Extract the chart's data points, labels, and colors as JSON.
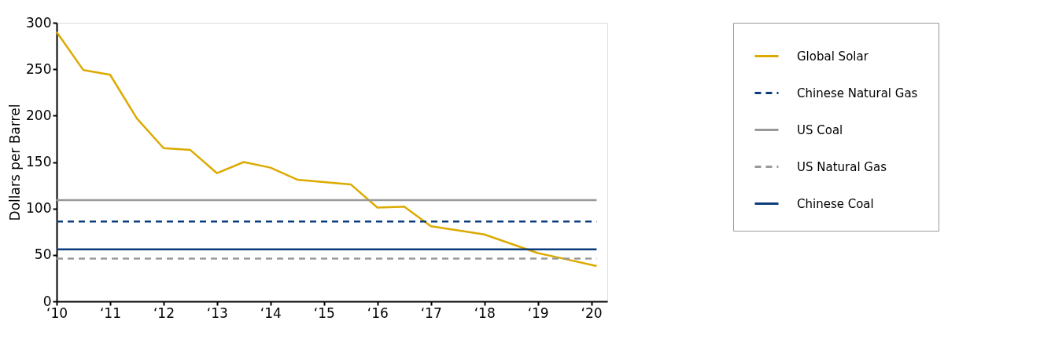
{
  "chart_data": {
    "type": "line",
    "ylabel": "Dollars per Barrel",
    "xlim": [
      10,
      20.3
    ],
    "ylim": [
      0,
      300
    ],
    "yticks": [
      0,
      50,
      100,
      150,
      200,
      250,
      300
    ],
    "xticks": [
      {
        "value": 10,
        "label": "‘10"
      },
      {
        "value": 11,
        "label": "‘11"
      },
      {
        "value": 12,
        "label": "‘12"
      },
      {
        "value": 13,
        "label": "‘13"
      },
      {
        "value": 14,
        "label": "‘14"
      },
      {
        "value": 15,
        "label": "‘15"
      },
      {
        "value": 16,
        "label": "‘16"
      },
      {
        "value": 17,
        "label": "‘17"
      },
      {
        "value": 18,
        "label": "‘18"
      },
      {
        "value": 19,
        "label": "‘19"
      },
      {
        "value": 20,
        "label": "‘20"
      }
    ],
    "grid": false,
    "legend": "right",
    "marker": "none",
    "series": [
      {
        "name": "Global Solar",
        "color": "#dcaa00",
        "line_style": "solid",
        "x": [
          10,
          10.5,
          11,
          11.5,
          12,
          12.5,
          13,
          13.5,
          14,
          14.5,
          15.5,
          16,
          16.5,
          17,
          18,
          19,
          19.4,
          20.1
        ],
        "values": [
          290,
          249,
          244,
          197,
          165,
          163,
          138,
          150,
          144,
          131,
          126,
          101,
          102,
          81,
          72,
          52,
          47,
          38
        ]
      },
      {
        "name": "Chinese Natural Gas",
        "color": "#0b3d7c",
        "line_style": "dashed",
        "x": [
          10,
          20.1
        ],
        "values": [
          86,
          86
        ]
      },
      {
        "name": "US Coal",
        "color": "#999999",
        "line_style": "solid",
        "x": [
          10,
          20.1
        ],
        "values": [
          109,
          109
        ]
      },
      {
        "name": "US Natural Gas",
        "color": "#999999",
        "line_style": "dashed",
        "x": [
          10,
          20.1
        ],
        "values": [
          46,
          46
        ]
      },
      {
        "name": "Chinese Coal",
        "color": "#0b3d7c",
        "line_style": "solid",
        "x": [
          10,
          20.1
        ],
        "values": [
          56,
          56
        ]
      }
    ]
  }
}
